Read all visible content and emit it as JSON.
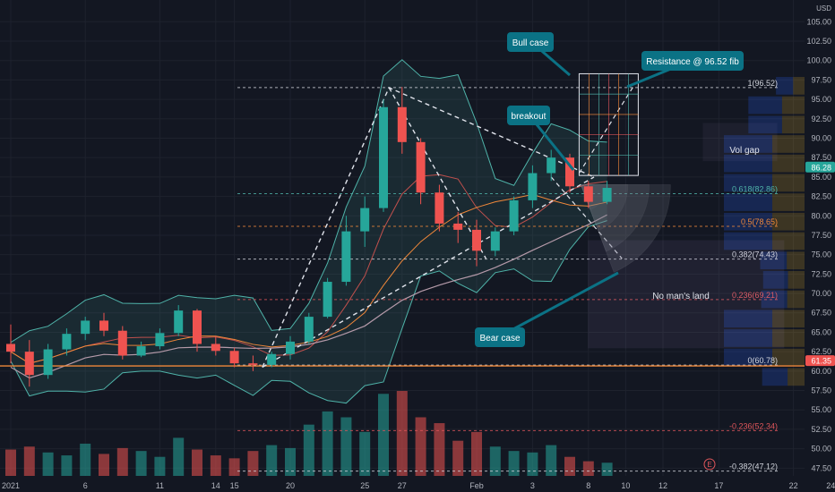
{
  "chart_data": {
    "type": "candlestick",
    "currency": "USD",
    "y_ticks": [
      "105.00",
      "102.50",
      "100.00",
      "97.50",
      "95.00",
      "92.50",
      "90.00",
      "87.50",
      "85.00",
      "82.50",
      "80.00",
      "77.50",
      "75.00",
      "72.50",
      "70.00",
      "67.50",
      "65.00",
      "62.50",
      "60.00",
      "57.50",
      "55.00",
      "52.50",
      "50.00",
      "47.50"
    ],
    "ylim": [
      46.5,
      107.8
    ],
    "x_ticks": [
      {
        "label": "2021",
        "x": 0
      },
      {
        "label": "6",
        "x": 4
      },
      {
        "label": "11",
        "x": 8
      },
      {
        "label": "14",
        "x": 11
      },
      {
        "label": "15",
        "x": 12
      },
      {
        "label": "20",
        "x": 15
      },
      {
        "label": "25",
        "x": 19
      },
      {
        "label": "27",
        "x": 21
      },
      {
        "label": "Feb",
        "x": 25
      },
      {
        "label": "3",
        "x": 28
      },
      {
        "label": "8",
        "x": 31
      },
      {
        "label": "10",
        "x": 33
      },
      {
        "label": "12",
        "x": 35
      },
      {
        "label": "17",
        "x": 38
      },
      {
        "label": "22",
        "x": 42
      },
      {
        "label": "24",
        "x": 44
      }
    ],
    "xlim": [
      -0.5,
      44.8
    ],
    "candles": [
      [
        63.5,
        66.0,
        61.0,
        62.5
      ],
      [
        62.5,
        64.0,
        58.0,
        59.5
      ],
      [
        59.5,
        63.5,
        59.0,
        62.8
      ],
      [
        62.8,
        65.5,
        62.0,
        64.8
      ],
      [
        64.8,
        67.0,
        64.0,
        66.5
      ],
      [
        66.5,
        67.5,
        64.5,
        65.2
      ],
      [
        65.2,
        65.8,
        61.5,
        62.0
      ],
      [
        62.0,
        63.8,
        61.8,
        63.2
      ],
      [
        63.2,
        65.5,
        62.8,
        64.9
      ],
      [
        64.9,
        68.5,
        64.5,
        67.8
      ],
      [
        67.8,
        68.0,
        62.5,
        63.5
      ],
      [
        63.5,
        64.5,
        62.0,
        62.6
      ],
      [
        62.6,
        63.0,
        60.5,
        61.0
      ],
      [
        61.0,
        62.0,
        60.0,
        60.8
      ],
      [
        60.8,
        62.5,
        60.5,
        62.2
      ],
      [
        62.2,
        64.5,
        61.5,
        63.8
      ],
      [
        63.8,
        67.5,
        63.5,
        67.0
      ],
      [
        67.0,
        72.0,
        66.8,
        71.5
      ],
      [
        71.5,
        80.0,
        71.0,
        78.0
      ],
      [
        78.0,
        82.5,
        76.0,
        81.0
      ],
      [
        81.0,
        95.0,
        80.5,
        94.0
      ],
      [
        94.0,
        96.6,
        88.0,
        89.5
      ],
      [
        89.5,
        90.0,
        81.5,
        83.0
      ],
      [
        83.0,
        84.0,
        78.0,
        79.0
      ],
      [
        79.0,
        80.5,
        76.5,
        78.2
      ],
      [
        78.2,
        79.5,
        73.5,
        75.5
      ],
      [
        75.5,
        78.5,
        74.8,
        78.0
      ],
      [
        78.0,
        82.5,
        77.5,
        82.0
      ],
      [
        82.0,
        86.5,
        81.0,
        85.5
      ],
      [
        85.5,
        88.5,
        84.5,
        87.5
      ],
      [
        87.5,
        88.0,
        83.0,
        83.8
      ],
      [
        83.8,
        84.5,
        81.0,
        81.8
      ],
      [
        81.8,
        84.5,
        81.5,
        83.6
      ]
    ],
    "volume": [
      18,
      20,
      16,
      14,
      22,
      15,
      19,
      17,
      13,
      26,
      18,
      14,
      12,
      17,
      21,
      19,
      35,
      44,
      40,
      30,
      56,
      58,
      40,
      36,
      24,
      30,
      20,
      17,
      16,
      21,
      13,
      10,
      9
    ],
    "fib_levels": [
      {
        "label": "1(96.52)",
        "value": 96.52,
        "color": "#d1d4dc"
      },
      {
        "label": "0.618(82.86)",
        "value": 82.86,
        "color": "#4fb3a9"
      },
      {
        "label": "0.5(78.65)",
        "value": 78.65,
        "color": "#f0883a"
      },
      {
        "label": "0.382(74.43)",
        "value": 74.43,
        "color": "#d1d4dc"
      },
      {
        "label": "0.236(69.21)",
        "value": 69.21,
        "color": "#e0565b"
      },
      {
        "label": "0(60.78)",
        "value": 60.78,
        "color": "#d1d4dc"
      },
      {
        "label": "-0.236(52.34)",
        "value": 52.34,
        "color": "#e0565b"
      },
      {
        "label": "-0.382(47.12)",
        "value": 47.12,
        "color": "#d1d4dc"
      }
    ],
    "price_tags": [
      {
        "text": "86.28",
        "value": 86.28,
        "bg": "#26a69a"
      },
      {
        "text": "61.35",
        "value": 61.35,
        "bg": "#ef5350"
      }
    ],
    "annotations": [
      {
        "text": "Bull case"
      },
      {
        "text": "Resistance @ 96.52 fib"
      },
      {
        "text": "breakout"
      },
      {
        "text": "Vol gap"
      },
      {
        "text": "No man's land"
      },
      {
        "text": "Bear case"
      }
    ],
    "event_marker": "E",
    "colors": {
      "up": "#26a69a",
      "down": "#ef5350",
      "band": "#4fb3a9",
      "ema": "#f0883a",
      "ma": "#b59aa9",
      "callout": "#0b7285"
    }
  }
}
